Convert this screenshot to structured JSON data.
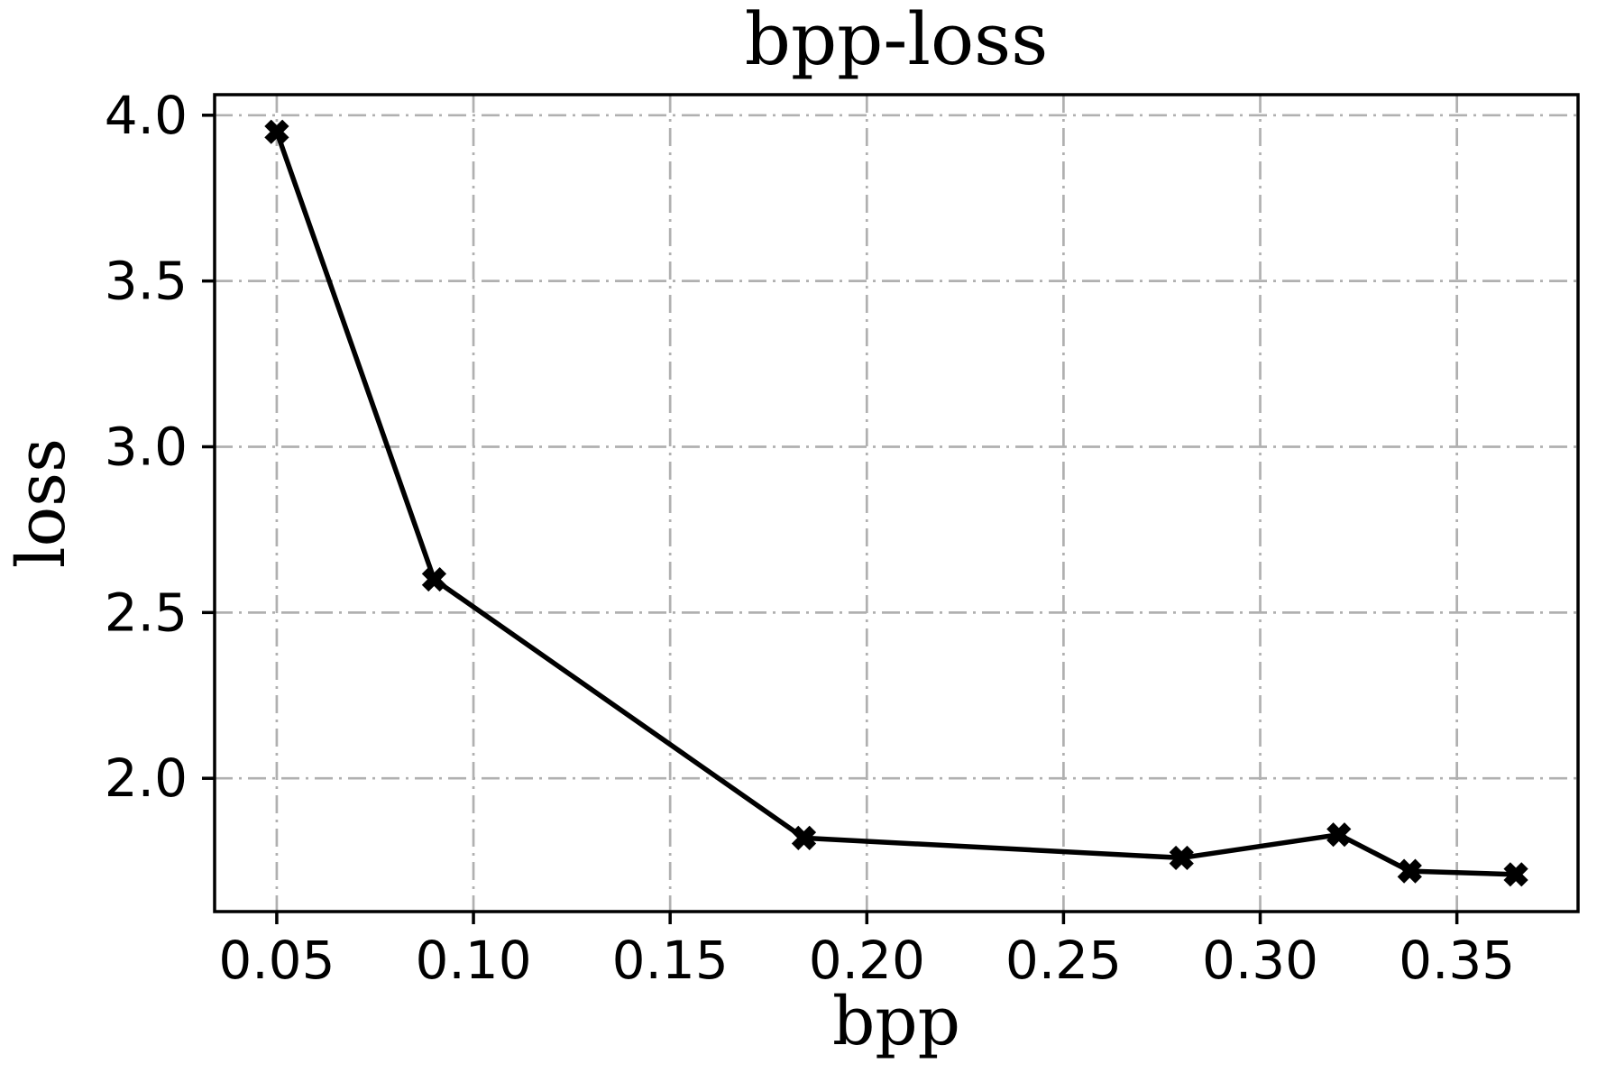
{
  "figure": {
    "background": "#ffffff"
  },
  "chart_data": {
    "type": "line",
    "title": "bpp-loss",
    "xlabel": "bpp",
    "ylabel": "loss",
    "series": [
      {
        "name": "bpp-loss",
        "color": "#000000",
        "marker": "X",
        "points": [
          [
            0.05,
            3.95
          ],
          [
            0.09,
            2.6
          ],
          [
            0.184,
            1.82
          ],
          [
            0.28,
            1.76
          ],
          [
            0.32,
            1.83
          ],
          [
            0.338,
            1.72
          ],
          [
            0.365,
            1.71
          ]
        ]
      }
    ],
    "x_ticks": [
      0.05,
      0.1,
      0.15,
      0.2,
      0.25,
      0.3,
      0.35
    ],
    "x_tick_labels": [
      "0.05",
      "0.10",
      "0.15",
      "0.20",
      "0.25",
      "0.30",
      "0.35"
    ],
    "y_ticks": [
      2.0,
      2.5,
      3.0,
      3.5,
      4.0
    ],
    "y_tick_labels": [
      "2.0",
      "2.5",
      "3.0",
      "3.5",
      "4.0"
    ],
    "xlim": [
      0.0342,
      0.3808
    ],
    "ylim": [
      1.598,
      4.062
    ],
    "grid": true,
    "grid_style": "dashdot",
    "grid_color": "#b0b0b0",
    "axis_color": "#000000",
    "legend": false
  }
}
